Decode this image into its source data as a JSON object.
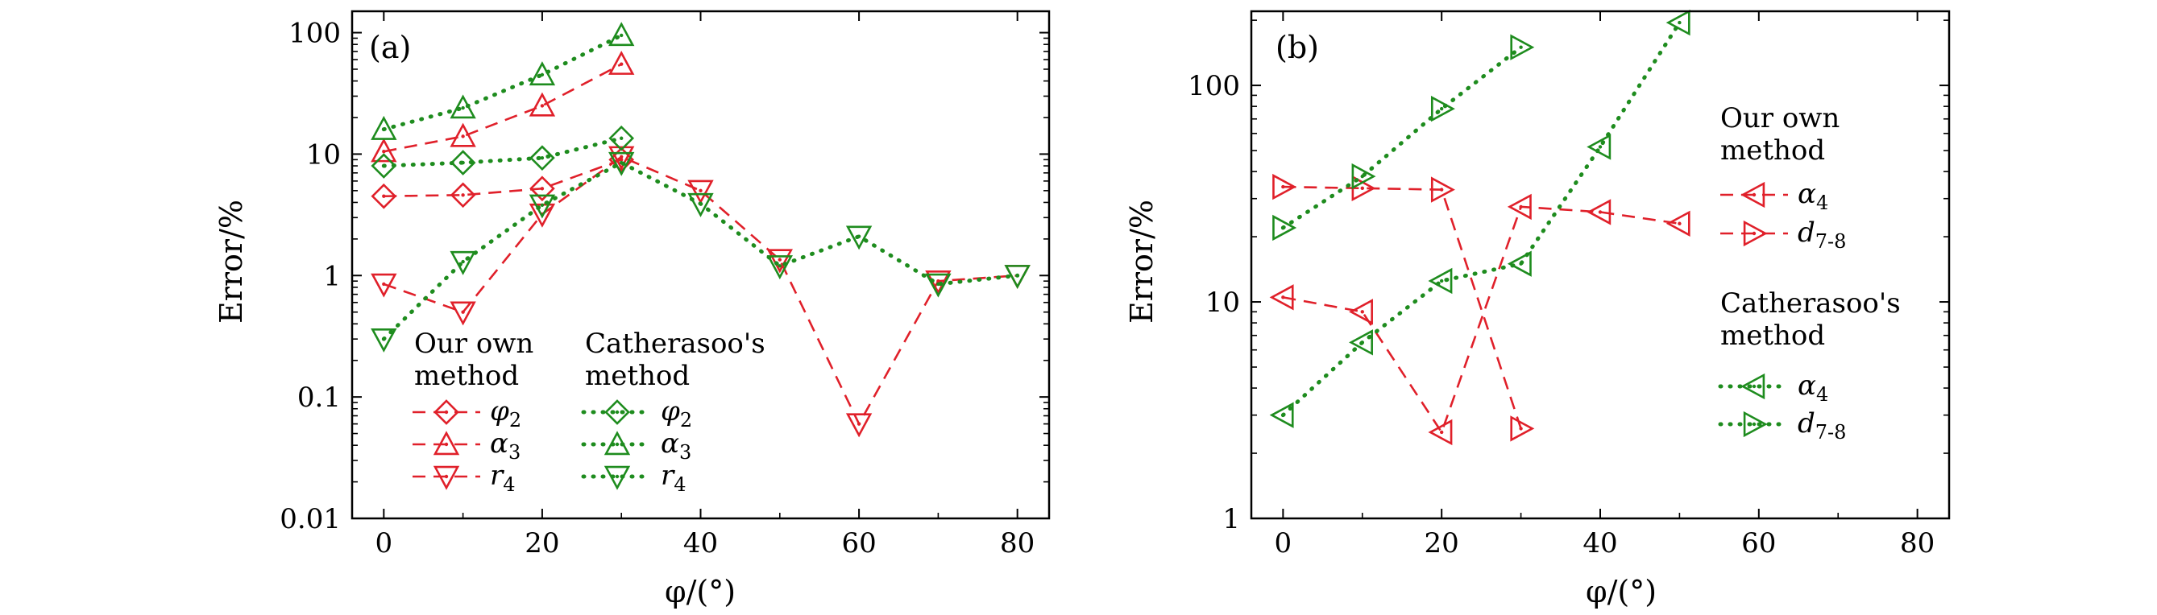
{
  "colors": {
    "our": "#e0202a",
    "cath": "#1e8c1e"
  },
  "chart_data": [
    {
      "panel": "(a)",
      "type": "line",
      "xlabel": "φ/(°)",
      "ylabel": "Error/%",
      "yscale": "log",
      "xlim": [
        -4,
        84
      ],
      "ylim": [
        0.01,
        150
      ],
      "xticks": [
        0,
        20,
        40,
        60,
        80
      ],
      "yticks": [
        0.01,
        0.1,
        1,
        10,
        100
      ],
      "ytick_labels": [
        "0.01",
        "0.1",
        "1",
        "10",
        "100"
      ],
      "grid": false,
      "legend_placement": "lower-left",
      "legend": {
        "our_title": [
          "Our own",
          "method"
        ],
        "cath_title": [
          "Catherasoo's",
          "method"
        ]
      },
      "series": [
        {
          "name": "φ2",
          "sub": "2",
          "base": "φ",
          "group": "our",
          "marker": "diamond",
          "x": [
            0,
            10,
            20,
            30
          ],
          "y": [
            4.5,
            4.6,
            5.2,
            9
          ]
        },
        {
          "name": "α3",
          "sub": "3",
          "base": "α",
          "group": "our",
          "marker": "tri-up",
          "x": [
            0,
            10,
            20,
            30
          ],
          "y": [
            10.5,
            14,
            25,
            55
          ]
        },
        {
          "name": "r4",
          "sub": "4",
          "base": "r",
          "group": "our",
          "marker": "tri-down",
          "x": [
            0,
            10,
            20,
            30,
            40,
            50,
            60,
            70,
            80
          ],
          "y": [
            0.85,
            0.5,
            3.2,
            9.5,
            5,
            1.35,
            0.06,
            0.9,
            1
          ]
        },
        {
          "name": "φ2",
          "sub": "2",
          "base": "φ",
          "group": "cath",
          "marker": "diamond",
          "x": [
            0,
            10,
            20,
            30
          ],
          "y": [
            8,
            8.5,
            9.3,
            13.5
          ]
        },
        {
          "name": "α3",
          "sub": "3",
          "base": "α",
          "group": "cath",
          "marker": "tri-up",
          "x": [
            0,
            10,
            20,
            30
          ],
          "y": [
            16,
            24,
            45,
            95
          ]
        },
        {
          "name": "r4",
          "sub": "4",
          "base": "r",
          "group": "cath",
          "marker": "tri-down",
          "x": [
            0,
            10,
            20,
            30,
            40,
            50,
            60,
            70,
            80
          ],
          "y": [
            0.3,
            1.3,
            3.8,
            8.5,
            3.9,
            1.2,
            2.1,
            0.85,
            1
          ]
        }
      ]
    },
    {
      "panel": "(b)",
      "type": "line",
      "xlabel": "φ/(°)",
      "ylabel": "Error/%",
      "yscale": "log",
      "xlim": [
        -4,
        84
      ],
      "ylim": [
        1,
        220
      ],
      "xticks": [
        0,
        20,
        40,
        60,
        80
      ],
      "yticks": [
        1,
        10,
        100
      ],
      "ytick_labels": [
        "1",
        "10",
        "100"
      ],
      "grid": false,
      "legend_placement": "right",
      "legend": {
        "our_title": [
          "Our own",
          "method"
        ],
        "cath_title": [
          "Catherasoo's",
          "method"
        ]
      },
      "series": [
        {
          "name": "α4",
          "sub": "4",
          "base": "α",
          "group": "our",
          "marker": "tri-left",
          "x": [
            0,
            10,
            20,
            30,
            40,
            50
          ],
          "y": [
            10.5,
            9,
            2.5,
            27.5,
            26,
            23
          ]
        },
        {
          "name": "d7-8",
          "sub": "7-8",
          "base": "d",
          "group": "our",
          "marker": "tri-right",
          "x": [
            0,
            10,
            20,
            30
          ],
          "y": [
            34,
            33.5,
            33,
            2.6
          ]
        },
        {
          "name": "α4",
          "sub": "4",
          "base": "α",
          "group": "cath",
          "marker": "tri-left",
          "x": [
            0,
            10,
            20,
            30,
            40,
            50
          ],
          "y": [
            3,
            6.5,
            12.5,
            15,
            52,
            195
          ]
        },
        {
          "name": "d7-8",
          "sub": "7-8",
          "base": "d",
          "group": "cath",
          "marker": "tri-right",
          "x": [
            0,
            10,
            20,
            30
          ],
          "y": [
            22,
            38,
            78,
            150
          ]
        }
      ]
    }
  ]
}
